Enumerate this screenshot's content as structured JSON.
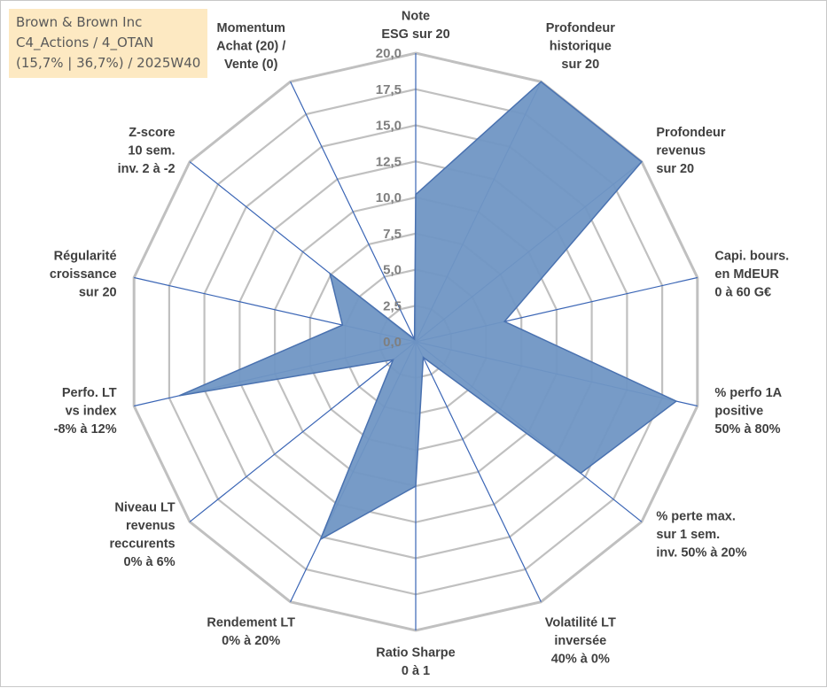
{
  "title_box": {
    "line1": "Brown & Brown Inc",
    "line2": "C4_Actions / 4_OTAN",
    "line3": "(15,7% | 36,7%) / 2025W40"
  },
  "colors": {
    "fill": "#7096c4",
    "stroke": "#4a72b0",
    "grid": "#c0c0c0",
    "spoke": "#3a65b5",
    "title_bg": "#fde9c2"
  },
  "chart_data": {
    "type": "radar",
    "rlim": [
      0,
      20
    ],
    "ticks": [
      "0,0",
      "2,5",
      "5,0",
      "7,5",
      "10,0",
      "12,5",
      "15,0",
      "17,5",
      "20,0"
    ],
    "categories": [
      [
        "Note",
        "ESG sur 20"
      ],
      [
        "Profondeur",
        "historique",
        "sur 20"
      ],
      [
        "Profondeur",
        "revenus",
        "sur 20"
      ],
      [
        "Capi. bours.",
        "en MdEUR",
        "0 à 60 G€"
      ],
      [
        "% perfo 1A",
        "positive",
        "50% à 80%"
      ],
      [
        "% perte max.",
        "sur 1 sem.",
        "inv. 50% à 20%"
      ],
      [
        "Volatilité LT",
        "inversée",
        "40% à 0%"
      ],
      [
        "Ratio Sharpe",
        "0 à 1"
      ],
      [
        "Rendement LT",
        "0% à 20%"
      ],
      [
        "Niveau LT",
        "revenus",
        "reccurents",
        "0% à 6%"
      ],
      [
        "Perfo. LT",
        "vs index",
        "-8% à 12%"
      ],
      [
        "Régularité",
        "croissance",
        "sur 20"
      ],
      [
        "Z-score",
        "10 sem.",
        "inv. 2 à -2"
      ],
      [
        "Momentum",
        "Achat (20) /",
        "Vente (0)"
      ]
    ],
    "values": [
      10.2,
      20.0,
      20.0,
      6.3,
      18.5,
      14.6,
      1.2,
      10.0,
      15.2,
      2.0,
      16.8,
      5.2,
      7.6,
      0.2
    ],
    "grid": true,
    "legend": "none"
  }
}
